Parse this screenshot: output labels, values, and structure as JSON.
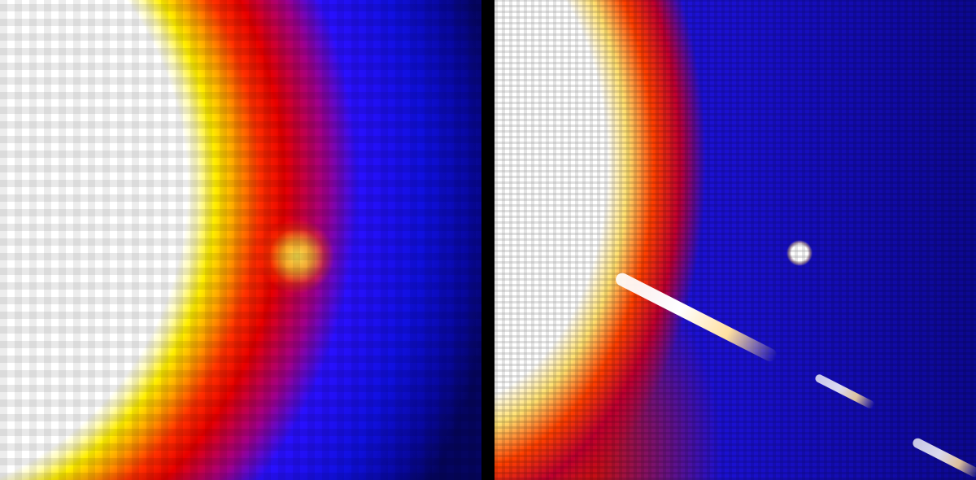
{
  "panels": [
    {
      "id": "left",
      "description_colors": {
        "core": "#ffffff",
        "halo": "#ffee00",
        "mid": "#e80000",
        "background": "#1010e0"
      }
    },
    {
      "id": "right",
      "description_colors": {
        "core": "#ffffff",
        "speckle": "#ff4000",
        "background": "#1a10d0"
      }
    }
  ],
  "divider_color": "#000000"
}
